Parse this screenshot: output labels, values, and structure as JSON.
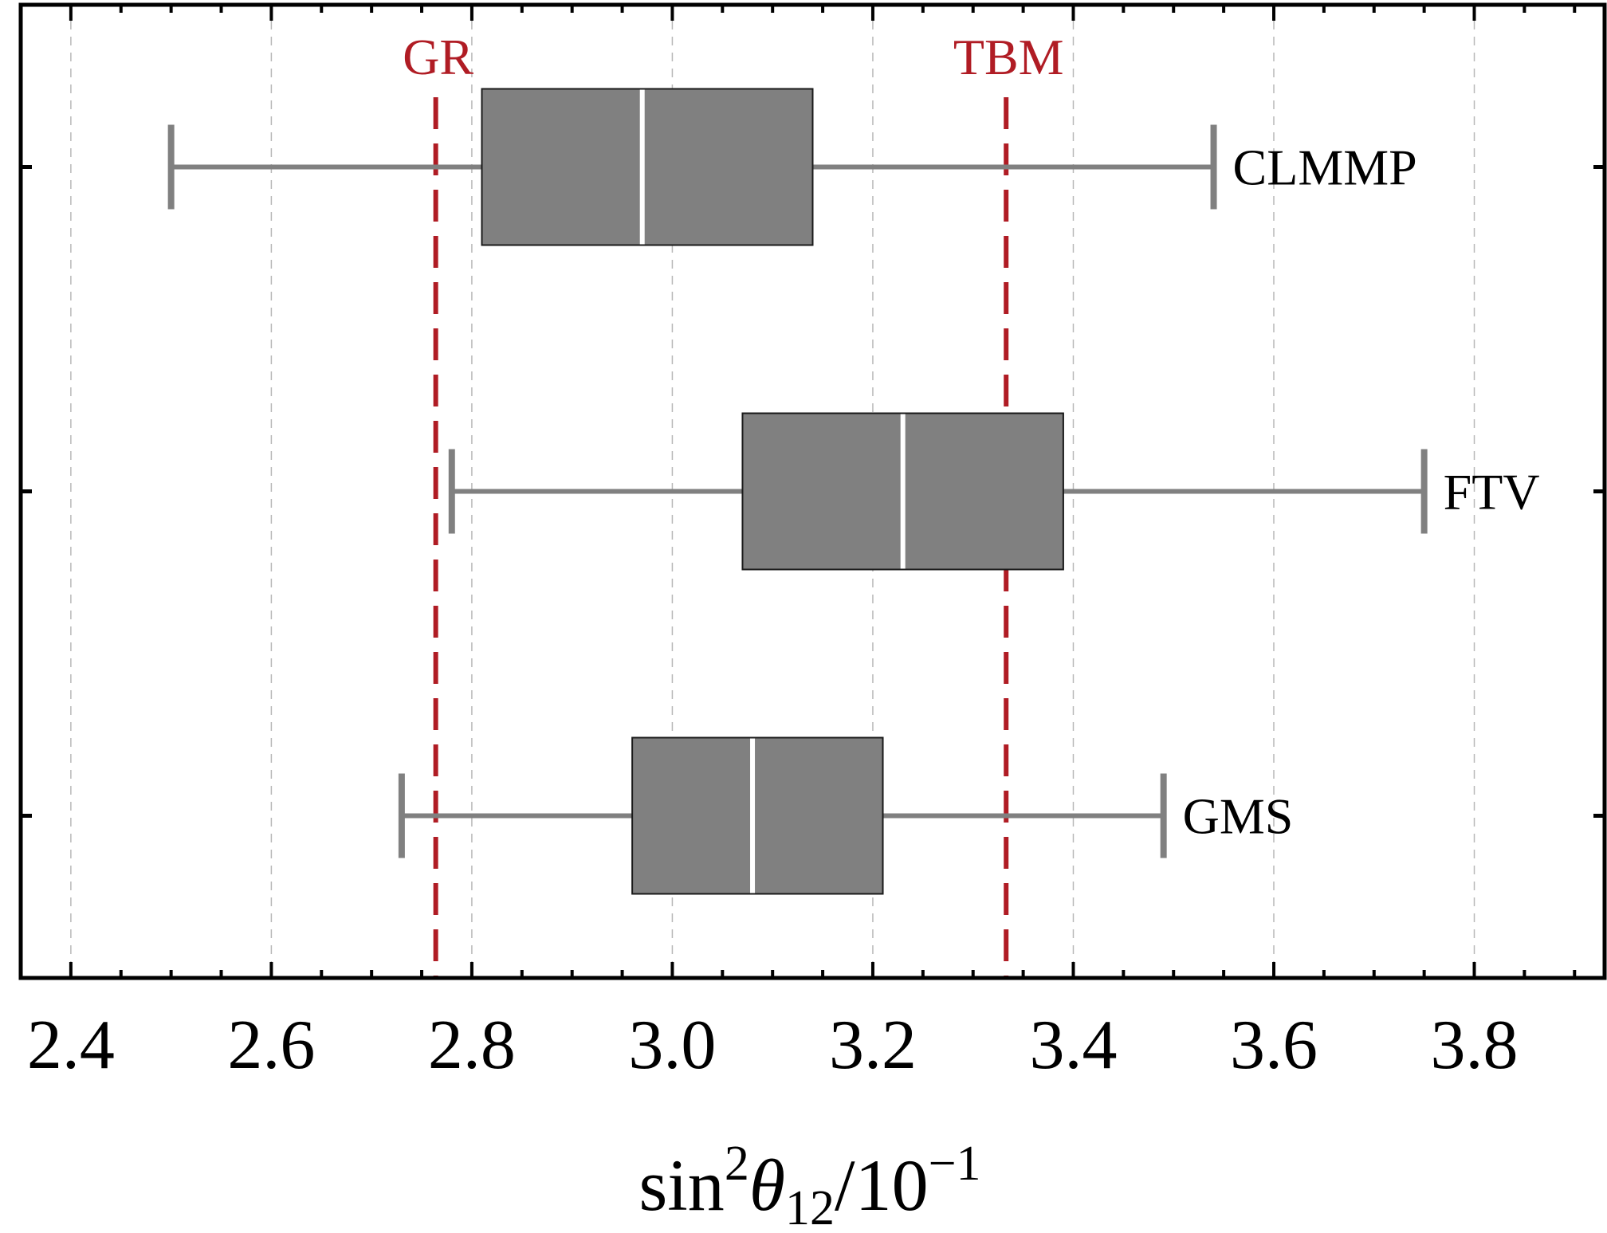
{
  "chart_data": {
    "type": "box",
    "xlabel": {
      "base": "sin",
      "sup": "2",
      "symbol": "θ",
      "sub": "12",
      "tail": "/10",
      "tail_sup": "−1"
    },
    "xlim": [
      2.35,
      3.93
    ],
    "x_ticks": [
      2.4,
      2.6,
      2.8,
      3.0,
      3.2,
      3.4,
      3.6,
      3.8
    ],
    "x_tick_labels": [
      "2.4",
      "2.6",
      "2.8",
      "3.0",
      "3.2",
      "3.4",
      "3.6",
      "3.8"
    ],
    "x_minor_step": 0.05,
    "grid": {
      "x": true,
      "y": false,
      "style": "dashed"
    },
    "categories": [
      "CLMMP",
      "FTV",
      "GMS"
    ],
    "boxes": [
      {
        "label": "CLMMP",
        "whisker_low": 2.5,
        "q1": 2.81,
        "median": 2.97,
        "q3": 3.14,
        "whisker_high": 3.54
      },
      {
        "label": "FTV",
        "whisker_low": 2.78,
        "q1": 3.07,
        "median": 3.23,
        "q3": 3.39,
        "whisker_high": 3.75
      },
      {
        "label": "GMS",
        "whisker_low": 2.73,
        "q1": 2.96,
        "median": 3.08,
        "q3": 3.21,
        "whisker_high": 3.49
      }
    ],
    "reference_lines": [
      {
        "label": "GR",
        "value": 2.764
      },
      {
        "label": "TBM",
        "value": 3.333
      }
    ],
    "colors": {
      "box_fill": "#808080",
      "box_edge": "#1a1a1a",
      "whisker": "#808080",
      "median": "#ffffff",
      "reference": "#b01c24",
      "grid": "#b8b8b8",
      "axis": "#000000",
      "text": "#000000"
    }
  }
}
